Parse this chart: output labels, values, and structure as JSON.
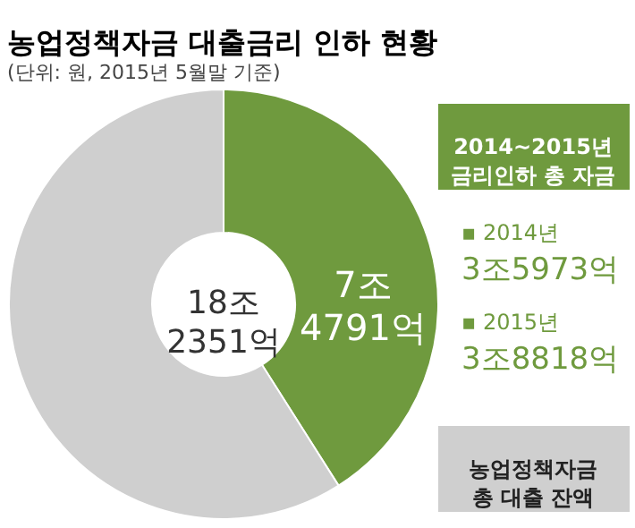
{
  "chart_data": {
    "type": "donut",
    "title": "농업정책자금 대출금리 인하 현황",
    "subtitle": "(단위: 원, 2015년 5월말 기준)",
    "categories": [
      null,
      null
    ],
    "values": [
      41,
      59
    ],
    "colors": [
      "#6f9a3e",
      "#cfcfcf"
    ],
    "annotations": [
      "18조 2351억",
      "7조 4791억",
      "2014~2015년 금리인하 총 자금",
      "▪ 2014년 3조5973억",
      "▪ 2015년 3조8818억",
      "농업정책자금 총 대출 잔액"
    ]
  }
}
